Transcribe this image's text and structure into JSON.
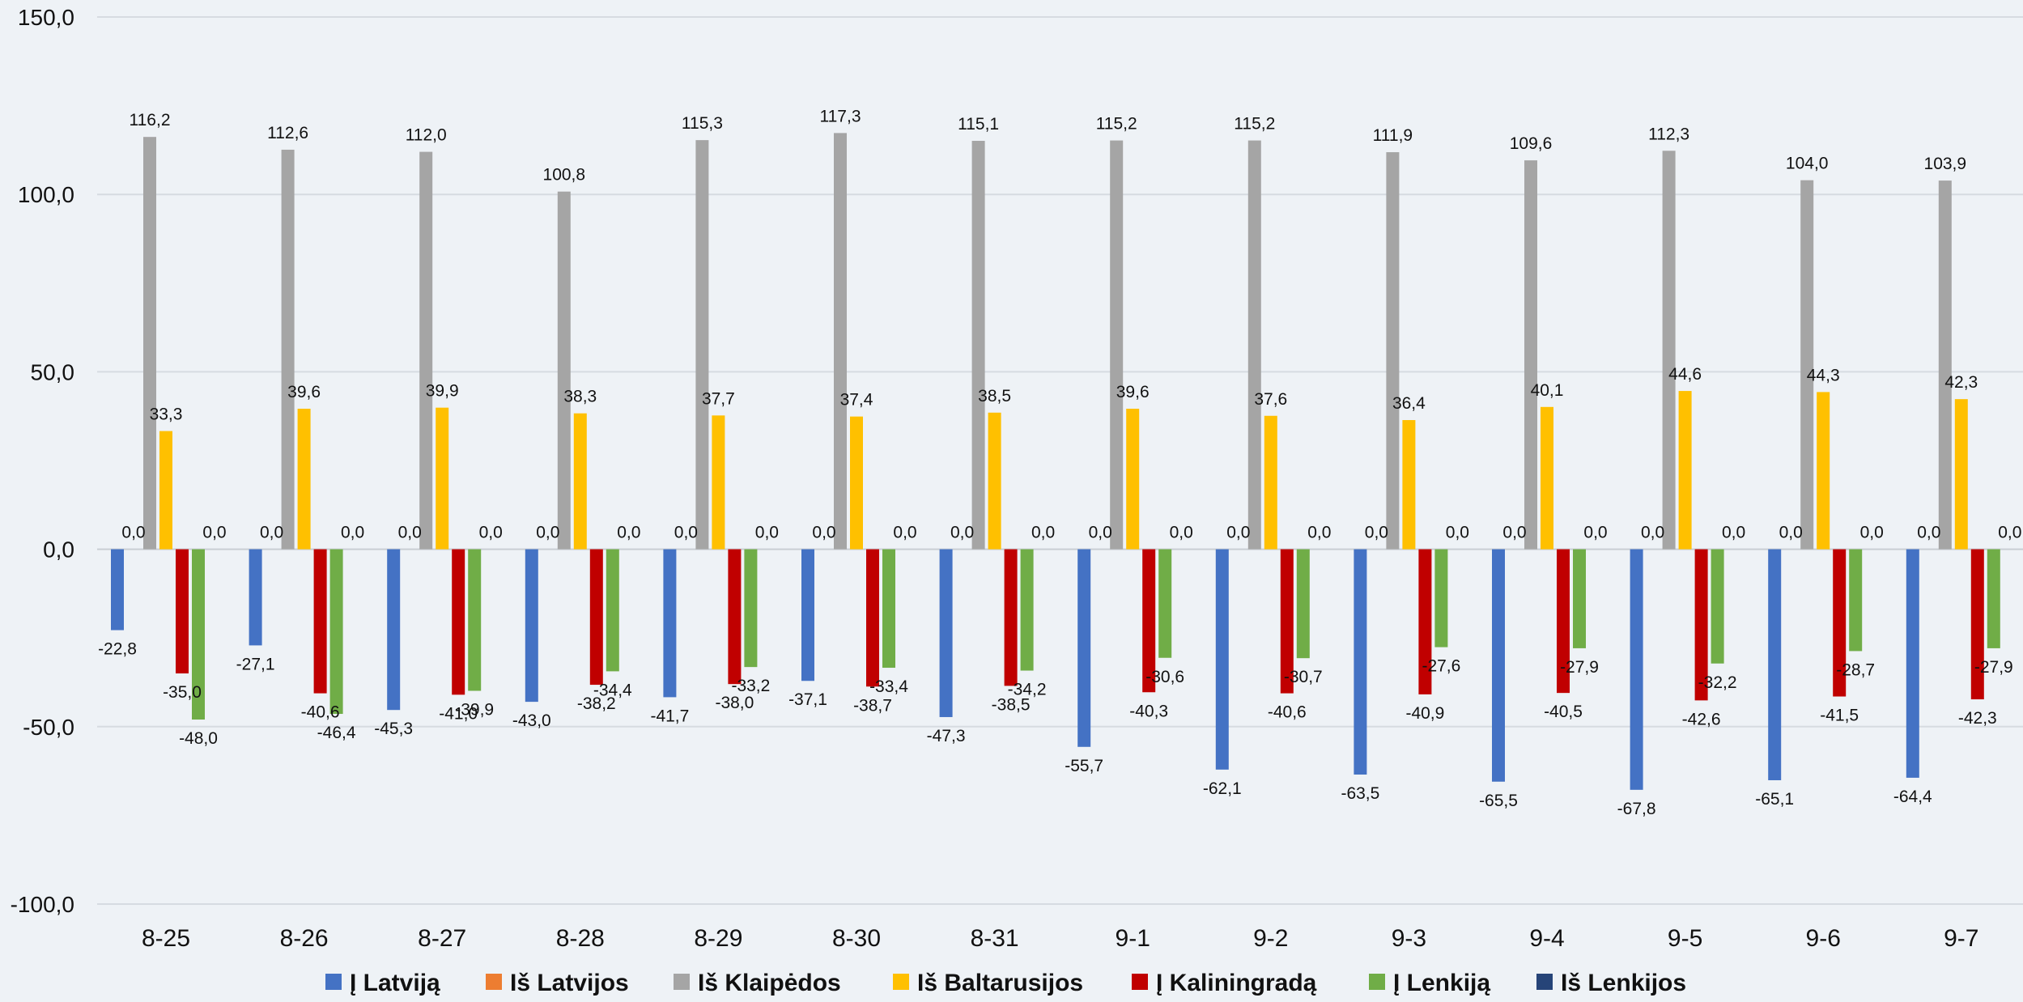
{
  "chart_data": {
    "type": "bar",
    "categories": [
      "8-25",
      "8-26",
      "8-27",
      "8-28",
      "8-29",
      "8-30",
      "8-31",
      "9-1",
      "9-2",
      "9-3",
      "9-4",
      "9-5",
      "9-6",
      "9-7"
    ],
    "ylim": [
      -100,
      150
    ],
    "yticks": [
      -100,
      -50,
      0,
      50,
      100,
      150
    ],
    "ytick_labels": [
      "-100,0",
      "-50,0",
      "0,0",
      "50,0",
      "100,0",
      "150,0"
    ],
    "grid": true,
    "legend_position": "bottom",
    "series": [
      {
        "name": "Į Latviją",
        "color": "#4472c4",
        "values": [
          -22.8,
          -27.1,
          -45.3,
          -43.0,
          -41.7,
          -37.1,
          -47.3,
          -55.7,
          -62.1,
          -63.5,
          -65.5,
          -67.8,
          -65.1,
          -64.4
        ],
        "labels": [
          "-22,8",
          "-27,1",
          "-45,3",
          "-43,0",
          "-41,7",
          "-37,1",
          "-47,3",
          "-55,7",
          "-62,1",
          "-63,5",
          "-65,5",
          "-67,8",
          "-65,1",
          "-64,4"
        ]
      },
      {
        "name": "Iš Latvijos",
        "color": "#ed7d31",
        "values": [
          0,
          0,
          0,
          0,
          0,
          0,
          0,
          0,
          0,
          0,
          0,
          0,
          0,
          0
        ],
        "labels": [
          "0,0",
          "0,0",
          "0,0",
          "0,0",
          "0,0",
          "0,0",
          "0,0",
          "0,0",
          "0,0",
          "0,0",
          "0,0",
          "0,0",
          "0,0",
          "0,0"
        ]
      },
      {
        "name": "Iš Klaipėdos",
        "color": "#a5a5a5",
        "values": [
          116.2,
          112.6,
          112.0,
          100.8,
          115.3,
          117.3,
          115.1,
          115.2,
          115.2,
          111.9,
          109.6,
          112.3,
          104.0,
          103.9
        ],
        "labels": [
          "116,2",
          "112,6",
          "112,0",
          "100,8",
          "115,3",
          "117,3",
          "115,1",
          "115,2",
          "115,2",
          "111,9",
          "109,6",
          "112,3",
          "104,0",
          "103,9"
        ]
      },
      {
        "name": "Iš Baltarusijos",
        "color": "#ffc000",
        "values": [
          33.3,
          39.6,
          39.9,
          38.3,
          37.7,
          37.4,
          38.5,
          39.6,
          37.6,
          36.4,
          40.1,
          44.6,
          44.3,
          42.3
        ],
        "labels": [
          "33,3",
          "39,6",
          "39,9",
          "38,3",
          "37,7",
          "37,4",
          "38,5",
          "39,6",
          "37,6",
          "36,4",
          "40,1",
          "44,6",
          "44,3",
          "42,3"
        ]
      },
      {
        "name": "Į Kaliningradą",
        "color": "#c00000",
        "values": [
          -35.0,
          -40.6,
          -41.0,
          -38.2,
          -38.0,
          -38.7,
          -38.5,
          -40.3,
          -40.6,
          -40.9,
          -40.5,
          -42.6,
          -41.5,
          -42.3
        ],
        "labels": [
          "-35,0",
          "-40,6",
          "-41,0",
          "-38,2",
          "-38,0",
          "-38,7",
          "-38,5",
          "-40,3",
          "-40,6",
          "-40,9",
          "-40,5",
          "-42,6",
          "-41,5",
          "-42,3"
        ]
      },
      {
        "name": "Į Lenkiją",
        "color": "#70ad47",
        "values": [
          -48.0,
          -46.4,
          -39.9,
          -34.4,
          -33.2,
          -33.4,
          -34.2,
          -30.6,
          -30.7,
          -27.6,
          -27.9,
          -32.2,
          -28.7,
          -27.9
        ],
        "labels": [
          "-48,0",
          "-46,4",
          "-39,9",
          "-34,4",
          "-33,2",
          "-33,4",
          "-34,2",
          "-30,6",
          "-30,7",
          "-27,6",
          "-27,9",
          "-32,2",
          "-28,7",
          "-27,9"
        ]
      },
      {
        "name": "Iš Lenkijos",
        "color": "#264478",
        "values": [
          0,
          0,
          0,
          0,
          0,
          0,
          0,
          0,
          0,
          0,
          0,
          0,
          0,
          0
        ],
        "labels": [
          "0,0",
          "0,0",
          "0,0",
          "0,0",
          "0,0",
          "0,0",
          "0,0",
          "0,0",
          "0,0",
          "0,0",
          "0,0",
          "0,0",
          "0,0",
          "0,0"
        ]
      }
    ]
  }
}
